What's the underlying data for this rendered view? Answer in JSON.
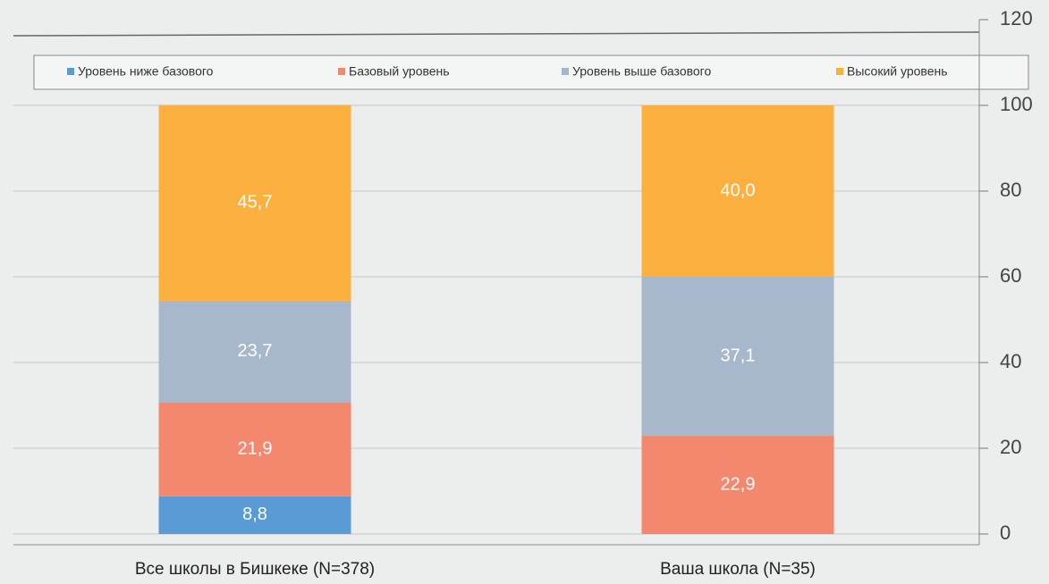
{
  "chart_data": {
    "type": "stacked_bar",
    "categories": [
      "Все школы в Бишкеке (N=378)",
      "Ваша школа (N=35)"
    ],
    "series": [
      {
        "name": "Уровень ниже базового",
        "color": "#5b9bd5",
        "values": [
          8.8,
          null
        ],
        "value_labels": [
          "8,8",
          null
        ]
      },
      {
        "name": "Базовый уровень",
        "color": "#f4886e",
        "values": [
          21.9,
          22.9
        ],
        "value_labels": [
          "21,9",
          "22,9"
        ]
      },
      {
        "name": "Уровень выше базового",
        "color": "#a7b7cc",
        "values": [
          23.7,
          37.1
        ],
        "value_labels": [
          "23,7",
          "37,1"
        ]
      },
      {
        "name": "Высокий уровень",
        "color": "#fbb03f",
        "values": [
          45.7,
          40.0
        ],
        "value_labels": [
          "45,7",
          "40,0"
        ]
      }
    ],
    "ylim": [
      0,
      120
    ],
    "yticks": [
      0,
      20,
      40,
      60,
      80,
      100,
      120
    ],
    "grid": true,
    "legend": "top"
  }
}
